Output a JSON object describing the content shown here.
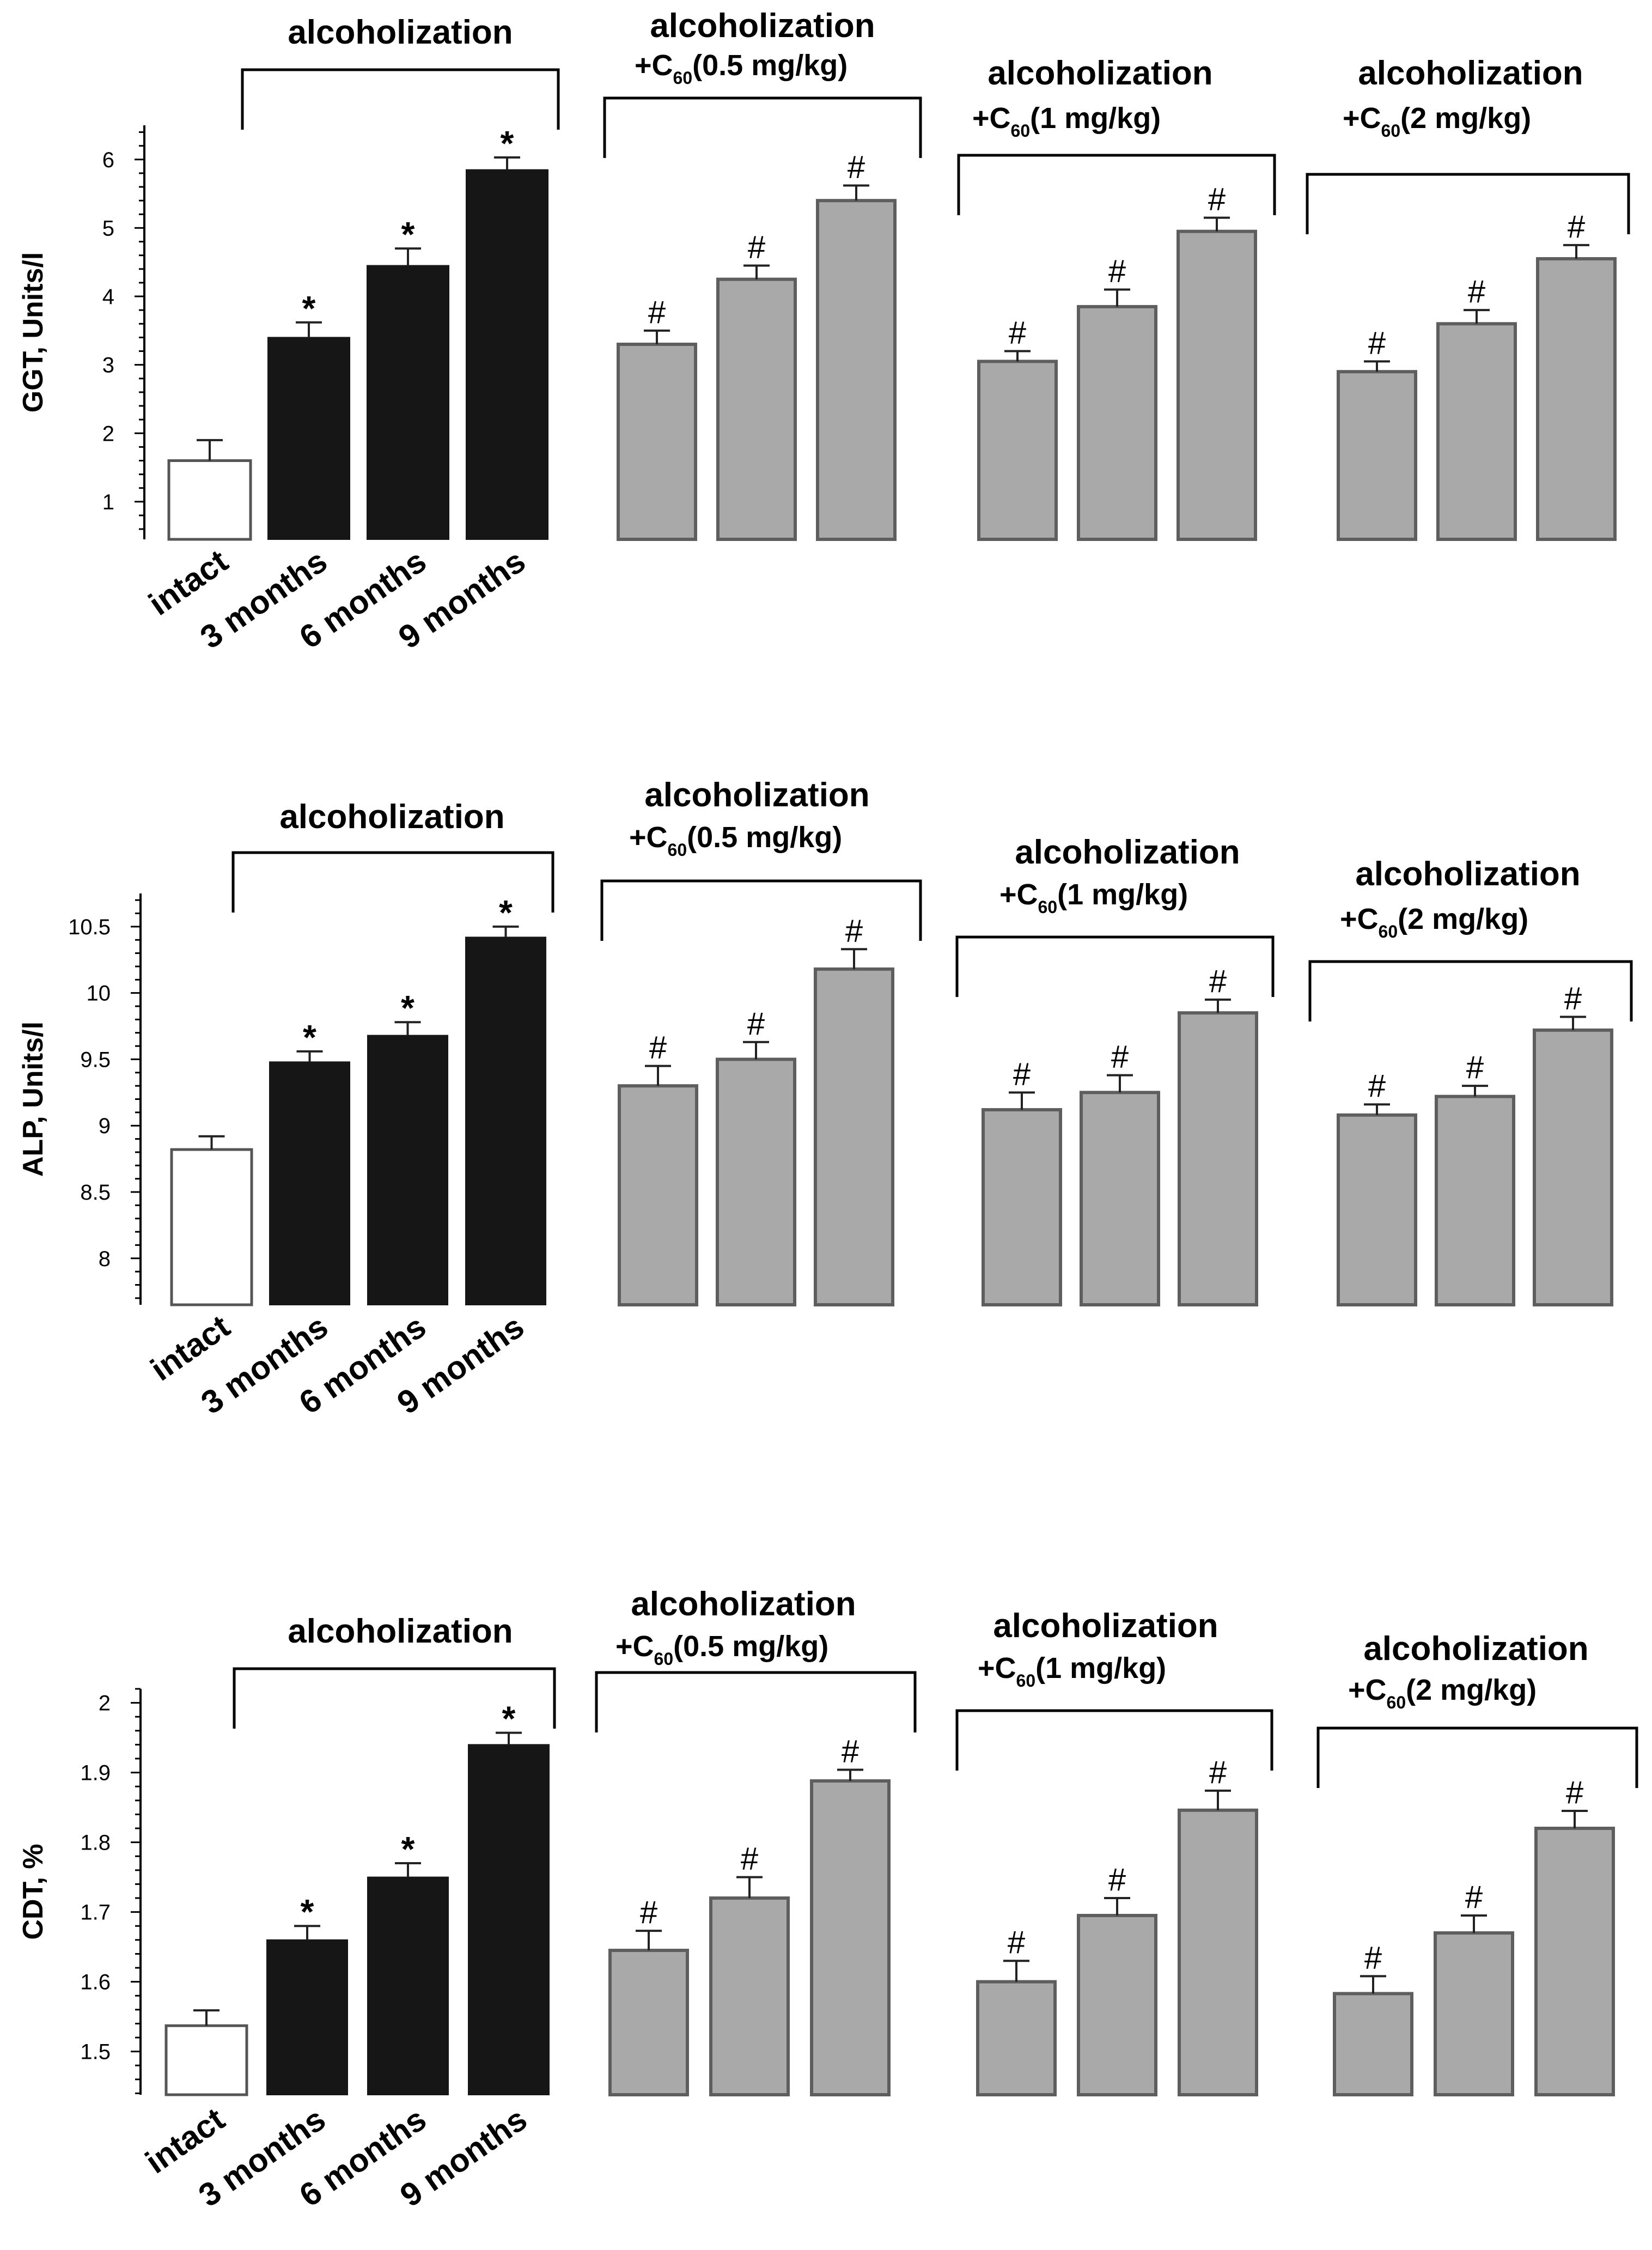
{
  "colors": {
    "intact_fill": "#ffffff",
    "alcohol_fill": "#161616",
    "c60_fill": "#a9a9a9",
    "c60_stroke": "#5e5e5e",
    "axis": "#000000"
  },
  "group_labels": {
    "alcoholization": "alcoholization",
    "c60_05": {
      "line1": "alcoholization",
      "line2_prefix": "+C",
      "line2_sub": "60",
      "line2_suffix": "(0.5 mg/kg)"
    },
    "c60_1": {
      "line1": "alcoholization",
      "line2_prefix": "+C",
      "line2_sub": "60",
      "line2_suffix": "(1 mg/kg)"
    },
    "c60_2": {
      "line1": "alcoholization",
      "line2_prefix": "+C",
      "line2_sub": "60",
      "line2_suffix": "(2 mg/kg)"
    }
  },
  "x_categories": [
    "intact",
    "3 months",
    "6 months",
    "9 months"
  ],
  "chart_data": [
    {
      "type": "bar",
      "ylabel": "GGT, Units/l",
      "y_ticks": [
        "1",
        "2",
        "3",
        "4",
        "5",
        "6"
      ],
      "ylim": [
        0.45,
        6.5
      ],
      "x_categories": [
        "intact",
        "3 months",
        "6 months",
        "9 months"
      ],
      "series": [
        {
          "group": "alcoholization",
          "categories": [
            "intact",
            "3 months",
            "6 months",
            "9 months"
          ],
          "values": [
            1.6,
            3.4,
            4.45,
            5.85
          ],
          "errors": [
            0.3,
            0.22,
            0.25,
            0.18
          ],
          "markers": [
            "",
            "*",
            "*",
            "*"
          ]
        },
        {
          "group": "alcoholization +C60(0.5 mg/kg)",
          "values": [
            3.3,
            4.25,
            5.4
          ],
          "errors": [
            0.2,
            0.2,
            0.22
          ],
          "markers": [
            "#",
            "#",
            "#"
          ]
        },
        {
          "group": "alcoholization +C60(1 mg/kg)",
          "values": [
            3.05,
            3.85,
            4.95
          ],
          "errors": [
            0.15,
            0.25,
            0.2
          ],
          "markers": [
            "#",
            "#",
            "#"
          ]
        },
        {
          "group": "alcoholization +C60(2 mg/kg)",
          "values": [
            2.9,
            3.6,
            4.55
          ],
          "errors": [
            0.15,
            0.2,
            0.2
          ],
          "markers": [
            "#",
            "#",
            "#"
          ]
        }
      ]
    },
    {
      "type": "bar",
      "ylabel": "ALP, Units/l",
      "y_ticks": [
        "8",
        "8.5",
        "9",
        "9.5",
        "10",
        "10.5"
      ],
      "ylim": [
        7.65,
        10.75
      ],
      "x_categories": [
        "intact",
        "3 months",
        "6 months",
        "9 months"
      ],
      "series": [
        {
          "group": "alcoholization",
          "categories": [
            "intact",
            "3 months",
            "6 months",
            "9 months"
          ],
          "values": [
            8.82,
            9.48,
            9.68,
            10.42
          ],
          "errors": [
            0.1,
            0.08,
            0.1,
            0.08
          ],
          "markers": [
            "",
            "*",
            "*",
            "*"
          ]
        },
        {
          "group": "alcoholization +C60(0.5 mg/kg)",
          "values": [
            9.3,
            9.5,
            10.18
          ],
          "errors": [
            0.15,
            0.13,
            0.15
          ],
          "markers": [
            "#",
            "#",
            "#"
          ]
        },
        {
          "group": "alcoholization +C60(1 mg/kg)",
          "values": [
            9.12,
            9.25,
            9.85
          ],
          "errors": [
            0.13,
            0.13,
            0.1
          ],
          "markers": [
            "#",
            "#",
            "#"
          ]
        },
        {
          "group": "alcoholization +C60(2 mg/kg)",
          "values": [
            9.08,
            9.22,
            9.72
          ],
          "errors": [
            0.08,
            0.08,
            0.1
          ],
          "markers": [
            "#",
            "#",
            "#"
          ]
        }
      ]
    },
    {
      "type": "bar",
      "ylabel": "CDT, %",
      "y_ticks": [
        "1.5",
        "1.6",
        "1.7",
        "1.8",
        "1.9",
        "2"
      ],
      "ylim": [
        1.438,
        2.02
      ],
      "x_categories": [
        "intact",
        "3 months",
        "6 months",
        "9 months"
      ],
      "series": [
        {
          "group": "alcoholization",
          "categories": [
            "intact",
            "3 months",
            "6 months",
            "9 months"
          ],
          "values": [
            1.537,
            1.66,
            1.75,
            1.94
          ],
          "errors": [
            0.022,
            0.02,
            0.02,
            0.017
          ],
          "markers": [
            "",
            "*",
            "*",
            "*"
          ]
        },
        {
          "group": "alcoholization +C60(0.5 mg/kg)",
          "values": [
            1.645,
            1.72,
            1.888
          ],
          "errors": [
            0.028,
            0.03,
            0.016
          ],
          "markers": [
            "#",
            "#",
            "#"
          ]
        },
        {
          "group": "alcoholization +C60(1 mg/kg)",
          "values": [
            1.6,
            1.695,
            1.846
          ],
          "errors": [
            0.03,
            0.025,
            0.028
          ],
          "markers": [
            "#",
            "#",
            "#"
          ]
        },
        {
          "group": "alcoholization +C60(2 mg/kg)",
          "values": [
            1.583,
            1.67,
            1.82
          ],
          "errors": [
            0.025,
            0.025,
            0.025
          ],
          "markers": [
            "#",
            "#",
            "#"
          ]
        }
      ]
    }
  ]
}
